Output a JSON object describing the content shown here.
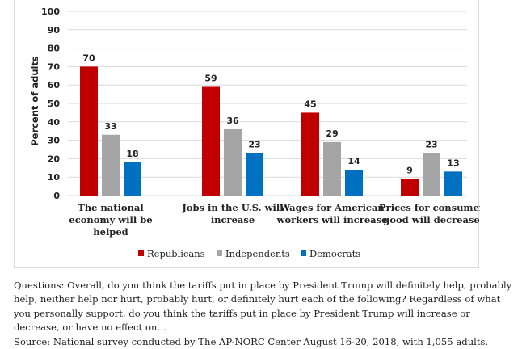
{
  "chart_data": {
    "type": "bar",
    "title": "",
    "ylabel": "Percent of adults",
    "xlabel": "",
    "ylim": [
      0,
      100
    ],
    "yticks": [
      0,
      10,
      20,
      30,
      40,
      50,
      60,
      70,
      80,
      90,
      100
    ],
    "grid": true,
    "legend": "bottom",
    "categories": [
      [
        "The national",
        "economy will be",
        "helped"
      ],
      [
        "Jobs in the U.S. will",
        "increase"
      ],
      [
        "Wages for American",
        "workers will increase"
      ],
      [
        "Prices for consumer",
        "good will decrease"
      ]
    ],
    "series": [
      {
        "name": "Republicans",
        "color": "#c00000",
        "values": [
          70,
          59,
          45,
          9
        ]
      },
      {
        "name": "Independents",
        "color": "#a5a5a5",
        "values": [
          33,
          36,
          29,
          23
        ]
      },
      {
        "name": "Democrats",
        "color": "#0070c0",
        "values": [
          18,
          23,
          14,
          13
        ]
      }
    ]
  },
  "footnote": {
    "questions": "Questions: Overall, do you think the tariffs put in place by President Trump will definitely help, probably help, neither help nor hurt, probably hurt, or definitely hurt each of the following? Regardless of what you personally support, do you think the tariffs put in place by President Trump will increase or decrease, or have no effect on…",
    "source": "Source: National survey conducted by The AP-NORC Center August 16-20, 2018, with 1,055 adults."
  }
}
